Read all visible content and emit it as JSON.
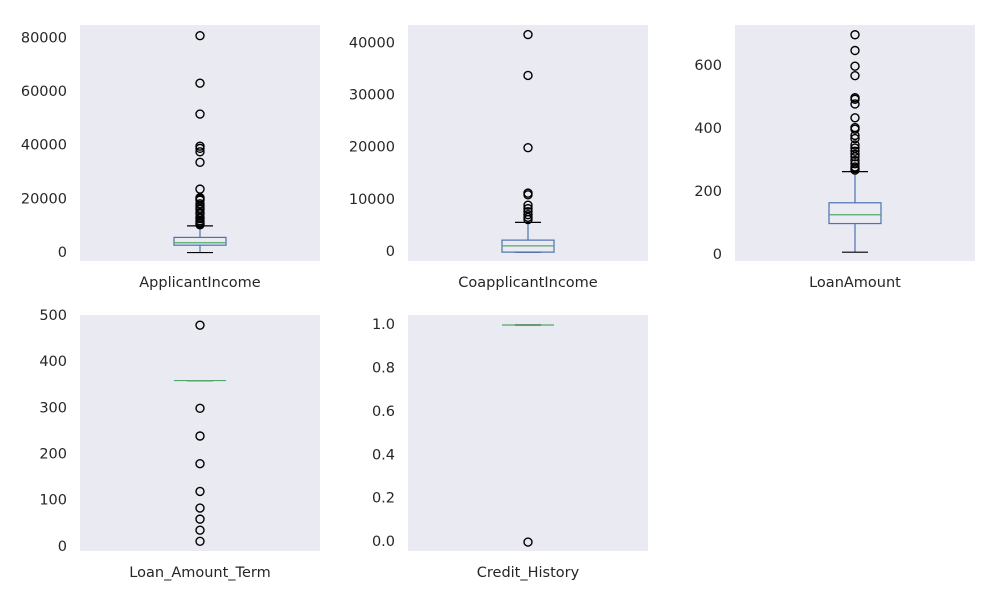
{
  "chart_data": [
    {
      "type": "box",
      "categories": [
        "ApplicantIncome"
      ],
      "ylim": [
        -3000,
        85000
      ],
      "yticks": [
        0,
        20000,
        40000,
        60000,
        80000
      ],
      "whisker_low": 150,
      "q1": 2900,
      "median": 3800,
      "q3": 5800,
      "whisker_high": 10100,
      "outliers": [
        81000,
        63300,
        51800,
        39800,
        39000,
        37700,
        33800,
        23800,
        20600,
        20200,
        19700,
        18300,
        17500,
        16700,
        16200,
        15000,
        14600,
        13300,
        12800,
        12000,
        11400,
        11000,
        10500
      ],
      "box_color": "#4c72b0",
      "median_color": "#55a868",
      "flier_color": "#000000",
      "background": "#eaeaf2",
      "grid": false
    },
    {
      "type": "box",
      "categories": [
        "CoapplicantIncome"
      ],
      "ylim": [
        -1700,
        43500
      ],
      "yticks": [
        0,
        10000,
        20000,
        30000,
        40000
      ],
      "whisker_low": 0,
      "q1": 0,
      "median": 1200,
      "q3": 2300,
      "whisker_high": 5700,
      "outliers": [
        41667,
        33837,
        20000,
        11300,
        10968,
        8980,
        8333,
        7750,
        7166,
        6666,
        6250
      ],
      "box_color": "#4c72b0",
      "median_color": "#55a868",
      "flier_color": "#000000",
      "background": "#eaeaf2",
      "grid": false
    },
    {
      "type": "box",
      "categories": [
        "LoanAmount"
      ],
      "ylim": [
        -19,
        731
      ],
      "yticks": [
        0,
        200,
        400,
        600
      ],
      "whisker_low": 9,
      "q1": 100,
      "median": 128,
      "q3": 166,
      "whisker_high": 265,
      "outliers": [
        700,
        650,
        600,
        570,
        500,
        495,
        480,
        436,
        405,
        400,
        380,
        370,
        350,
        340,
        330,
        320,
        312,
        300,
        290,
        280,
        275,
        270
      ],
      "box_color": "#4c72b0",
      "median_color": "#55a868",
      "flier_color": "#000000",
      "background": "#eaeaf2",
      "grid": false
    },
    {
      "type": "box",
      "categories": [
        "Loan_Amount_Term"
      ],
      "ylim": [
        -9,
        502
      ],
      "yticks": [
        0,
        100,
        200,
        300,
        400,
        500
      ],
      "whisker_low": 360,
      "q1": 360,
      "median": 360,
      "q3": 360,
      "whisker_high": 360,
      "outliers": [
        480,
        300,
        240,
        180,
        120,
        84,
        60,
        36,
        12
      ],
      "box_color": "#4c72b0",
      "median_color": "#55a868",
      "flier_color": "#000000",
      "background": "#eaeaf2",
      "grid": false
    },
    {
      "type": "box",
      "categories": [
        "Credit_History"
      ],
      "ylim": [
        -0.041,
        1.046
      ],
      "yticks": [
        {
          "value": 0,
          "label": "0.0"
        },
        {
          "value": 0.2,
          "label": "0.2"
        },
        {
          "value": 0.4,
          "label": "0.4"
        },
        {
          "value": 0.6,
          "label": "0.6"
        },
        {
          "value": 0.8,
          "label": "0.8"
        },
        {
          "value": 1,
          "label": "1.0"
        }
      ],
      "whisker_low": 1,
      "q1": 1,
      "median": 1,
      "q3": 1,
      "whisker_high": 1,
      "outliers": [
        0
      ],
      "box_color": "#4c72b0",
      "median_color": "#55a868",
      "flier_color": "#000000",
      "background": "#eaeaf2",
      "grid": false
    }
  ]
}
